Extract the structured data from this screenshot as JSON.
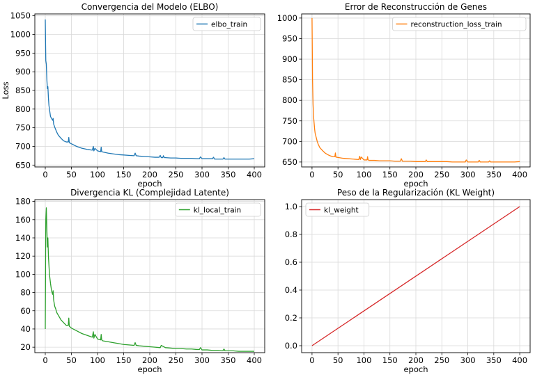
{
  "chart_data": [
    {
      "type": "line",
      "title": "Convergencia del Modelo (ELBO)",
      "xlabel": "epoch",
      "ylabel": "Loss",
      "xlim": [
        -20,
        420
      ],
      "ylim": [
        645,
        1055
      ],
      "xticks": [
        0,
        50,
        100,
        150,
        200,
        250,
        300,
        350,
        400
      ],
      "yticks": [
        650,
        700,
        750,
        800,
        850,
        900,
        950,
        1000,
        1050
      ],
      "grid": true,
      "legend": "top-right",
      "series": [
        {
          "name": "elbo_train",
          "color": "#1f77b4",
          "x": [
            0,
            1,
            2,
            3,
            4,
            5,
            6,
            7,
            8,
            9,
            10,
            12,
            14,
            15,
            16,
            18,
            20,
            22,
            25,
            30,
            35,
            40,
            44,
            45,
            46,
            50,
            60,
            70,
            80,
            90,
            92,
            93,
            95,
            100,
            106,
            107,
            108,
            110,
            120,
            130,
            140,
            150,
            160,
            170,
            172,
            174,
            180,
            190,
            200,
            210,
            218,
            220,
            222,
            225,
            226,
            228,
            230,
            240,
            250,
            260,
            270,
            280,
            290,
            295,
            297,
            300,
            310,
            320,
            322,
            324,
            330,
            340,
            342,
            344,
            350,
            360,
            370,
            380,
            390,
            400
          ],
          "y": [
            1040,
            930,
            920,
            880,
            855,
            860,
            830,
            810,
            800,
            790,
            780,
            775,
            770,
            775,
            760,
            752,
            745,
            738,
            730,
            722,
            715,
            712,
            712,
            724,
            710,
            707,
            700,
            695,
            692,
            690,
            700,
            688,
            695,
            688,
            686,
            698,
            686,
            685,
            682,
            680,
            678,
            677,
            676,
            675,
            682,
            675,
            674,
            673,
            672,
            671,
            671,
            676,
            670,
            670,
            675,
            670,
            670,
            669,
            669,
            668,
            668,
            668,
            667,
            667,
            672,
            667,
            667,
            667,
            671,
            666,
            666,
            666,
            670,
            666,
            666,
            666,
            666,
            666,
            666,
            667
          ]
        }
      ]
    },
    {
      "type": "line",
      "title": "Error de Reconstrucción de Genes",
      "xlabel": "epoch",
      "ylabel": "",
      "xlim": [
        -20,
        420
      ],
      "ylim": [
        638,
        1010
      ],
      "xticks": [
        0,
        50,
        100,
        150,
        200,
        250,
        300,
        350,
        400
      ],
      "yticks": [
        650,
        700,
        750,
        800,
        850,
        900,
        950,
        1000
      ],
      "grid": true,
      "legend": "top-right",
      "series": [
        {
          "name": "reconstruction_loss_train",
          "color": "#ff7f0e",
          "x": [
            0,
            1,
            2,
            3,
            4,
            5,
            6,
            8,
            10,
            12,
            15,
            20,
            25,
            30,
            35,
            40,
            44,
            45,
            46,
            50,
            60,
            70,
            80,
            90,
            92,
            93,
            95,
            100,
            106,
            107,
            108,
            110,
            120,
            130,
            140,
            150,
            160,
            170,
            172,
            174,
            180,
            190,
            200,
            210,
            218,
            220,
            222,
            230,
            240,
            250,
            260,
            270,
            280,
            290,
            295,
            297,
            300,
            310,
            320,
            322,
            324,
            330,
            340,
            342,
            344,
            350,
            360,
            370,
            380,
            390,
            400
          ],
          "y": [
            1000,
            850,
            790,
            760,
            745,
            730,
            720,
            710,
            700,
            693,
            685,
            678,
            672,
            668,
            665,
            663,
            663,
            672,
            662,
            661,
            659,
            658,
            657,
            656,
            664,
            656,
            662,
            655,
            655,
            663,
            655,
            654,
            654,
            653,
            653,
            653,
            652,
            652,
            658,
            652,
            652,
            652,
            651,
            651,
            651,
            655,
            651,
            651,
            651,
            651,
            651,
            650,
            650,
            650,
            650,
            655,
            650,
            650,
            650,
            654,
            650,
            650,
            650,
            653,
            650,
            650,
            650,
            650,
            650,
            650,
            651
          ]
        }
      ]
    },
    {
      "type": "line",
      "title": "Divergencia KL (Complejidad Latente)",
      "xlabel": "epoch",
      "ylabel": "",
      "xlim": [
        -20,
        420
      ],
      "ylim": [
        14,
        182
      ],
      "xticks": [
        0,
        50,
        100,
        150,
        200,
        250,
        300,
        350,
        400
      ],
      "yticks": [
        20,
        40,
        60,
        80,
        100,
        120,
        140,
        160,
        180
      ],
      "grid": true,
      "legend": "top-right",
      "series": [
        {
          "name": "kl_local_train",
          "color": "#2ca02c",
          "x": [
            0,
            1,
            2,
            3,
            4,
            5,
            6,
            7,
            8,
            9,
            10,
            12,
            14,
            15,
            16,
            18,
            20,
            22,
            25,
            30,
            35,
            40,
            44,
            45,
            46,
            50,
            60,
            70,
            80,
            90,
            92,
            93,
            95,
            100,
            106,
            107,
            108,
            110,
            120,
            130,
            140,
            150,
            160,
            170,
            172,
            174,
            180,
            190,
            200,
            210,
            220,
            222,
            230,
            240,
            250,
            260,
            270,
            280,
            290,
            295,
            297,
            300,
            310,
            320,
            330,
            340,
            342,
            344,
            350,
            360,
            370,
            380,
            390,
            400
          ],
          "y": [
            40,
            160,
            173,
            150,
            130,
            140,
            120,
            110,
            100,
            95,
            90,
            82,
            78,
            82,
            72,
            65,
            62,
            58,
            55,
            50,
            47,
            44,
            44,
            52,
            43,
            41,
            38,
            35,
            33,
            31,
            37,
            30,
            34,
            29,
            28,
            34,
            28,
            27,
            26,
            25,
            24,
            23,
            22.5,
            22,
            25,
            22,
            21.5,
            21,
            20.5,
            20,
            19.5,
            22,
            19.5,
            19,
            18.5,
            18.5,
            18,
            18,
            17.5,
            17.5,
            19.5,
            17,
            17,
            16.5,
            16.5,
            16,
            18,
            16,
            16,
            16,
            15.5,
            15.5,
            15.5,
            15.5
          ]
        }
      ]
    },
    {
      "type": "line",
      "title": "Peso de la Regularización (KL Weight)",
      "xlabel": "epoch",
      "ylabel": "",
      "xlim": [
        -20,
        420
      ],
      "ylim": [
        -0.05,
        1.05
      ],
      "xticks": [
        0,
        50,
        100,
        150,
        200,
        250,
        300,
        350,
        400
      ],
      "yticks": [
        0.0,
        0.2,
        0.4,
        0.6,
        0.8,
        1.0
      ],
      "grid": true,
      "legend": "top-left",
      "series": [
        {
          "name": "kl_weight",
          "color": "#d62728",
          "x": [
            0,
            400
          ],
          "y": [
            0.0,
            1.0
          ]
        }
      ]
    }
  ]
}
